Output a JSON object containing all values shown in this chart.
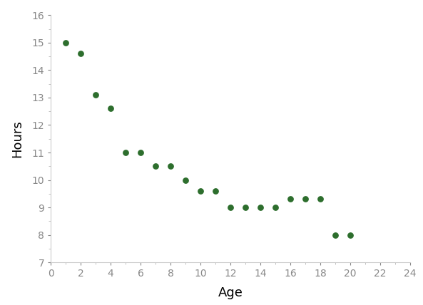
{
  "x": [
    1,
    2,
    3,
    4,
    5,
    6,
    7,
    8,
    9,
    10,
    11,
    12,
    13,
    14,
    15,
    16,
    17,
    18,
    19,
    20
  ],
  "y": [
    15,
    14.6,
    13.1,
    12.6,
    11.0,
    11.0,
    10.5,
    10.5,
    10.0,
    9.6,
    9.6,
    9.0,
    9.0,
    9.0,
    9.0,
    9.3,
    9.3,
    9.3,
    8.0,
    8.0
  ],
  "dot_color": "#2d6e2d",
  "dot_size": 28,
  "xlabel": "Age",
  "ylabel": "Hours",
  "xlim": [
    0,
    24
  ],
  "ylim": [
    7,
    16
  ],
  "xticks": [
    0,
    2,
    4,
    6,
    8,
    10,
    12,
    14,
    16,
    18,
    20,
    22,
    24
  ],
  "yticks": [
    7,
    8,
    9,
    10,
    11,
    12,
    13,
    14,
    15,
    16
  ],
  "background_color": "#ffffff",
  "xlabel_fontsize": 13,
  "ylabel_fontsize": 13,
  "tick_fontsize": 10,
  "figure_width": 5.93,
  "figure_height": 4.28,
  "dpi": 100
}
